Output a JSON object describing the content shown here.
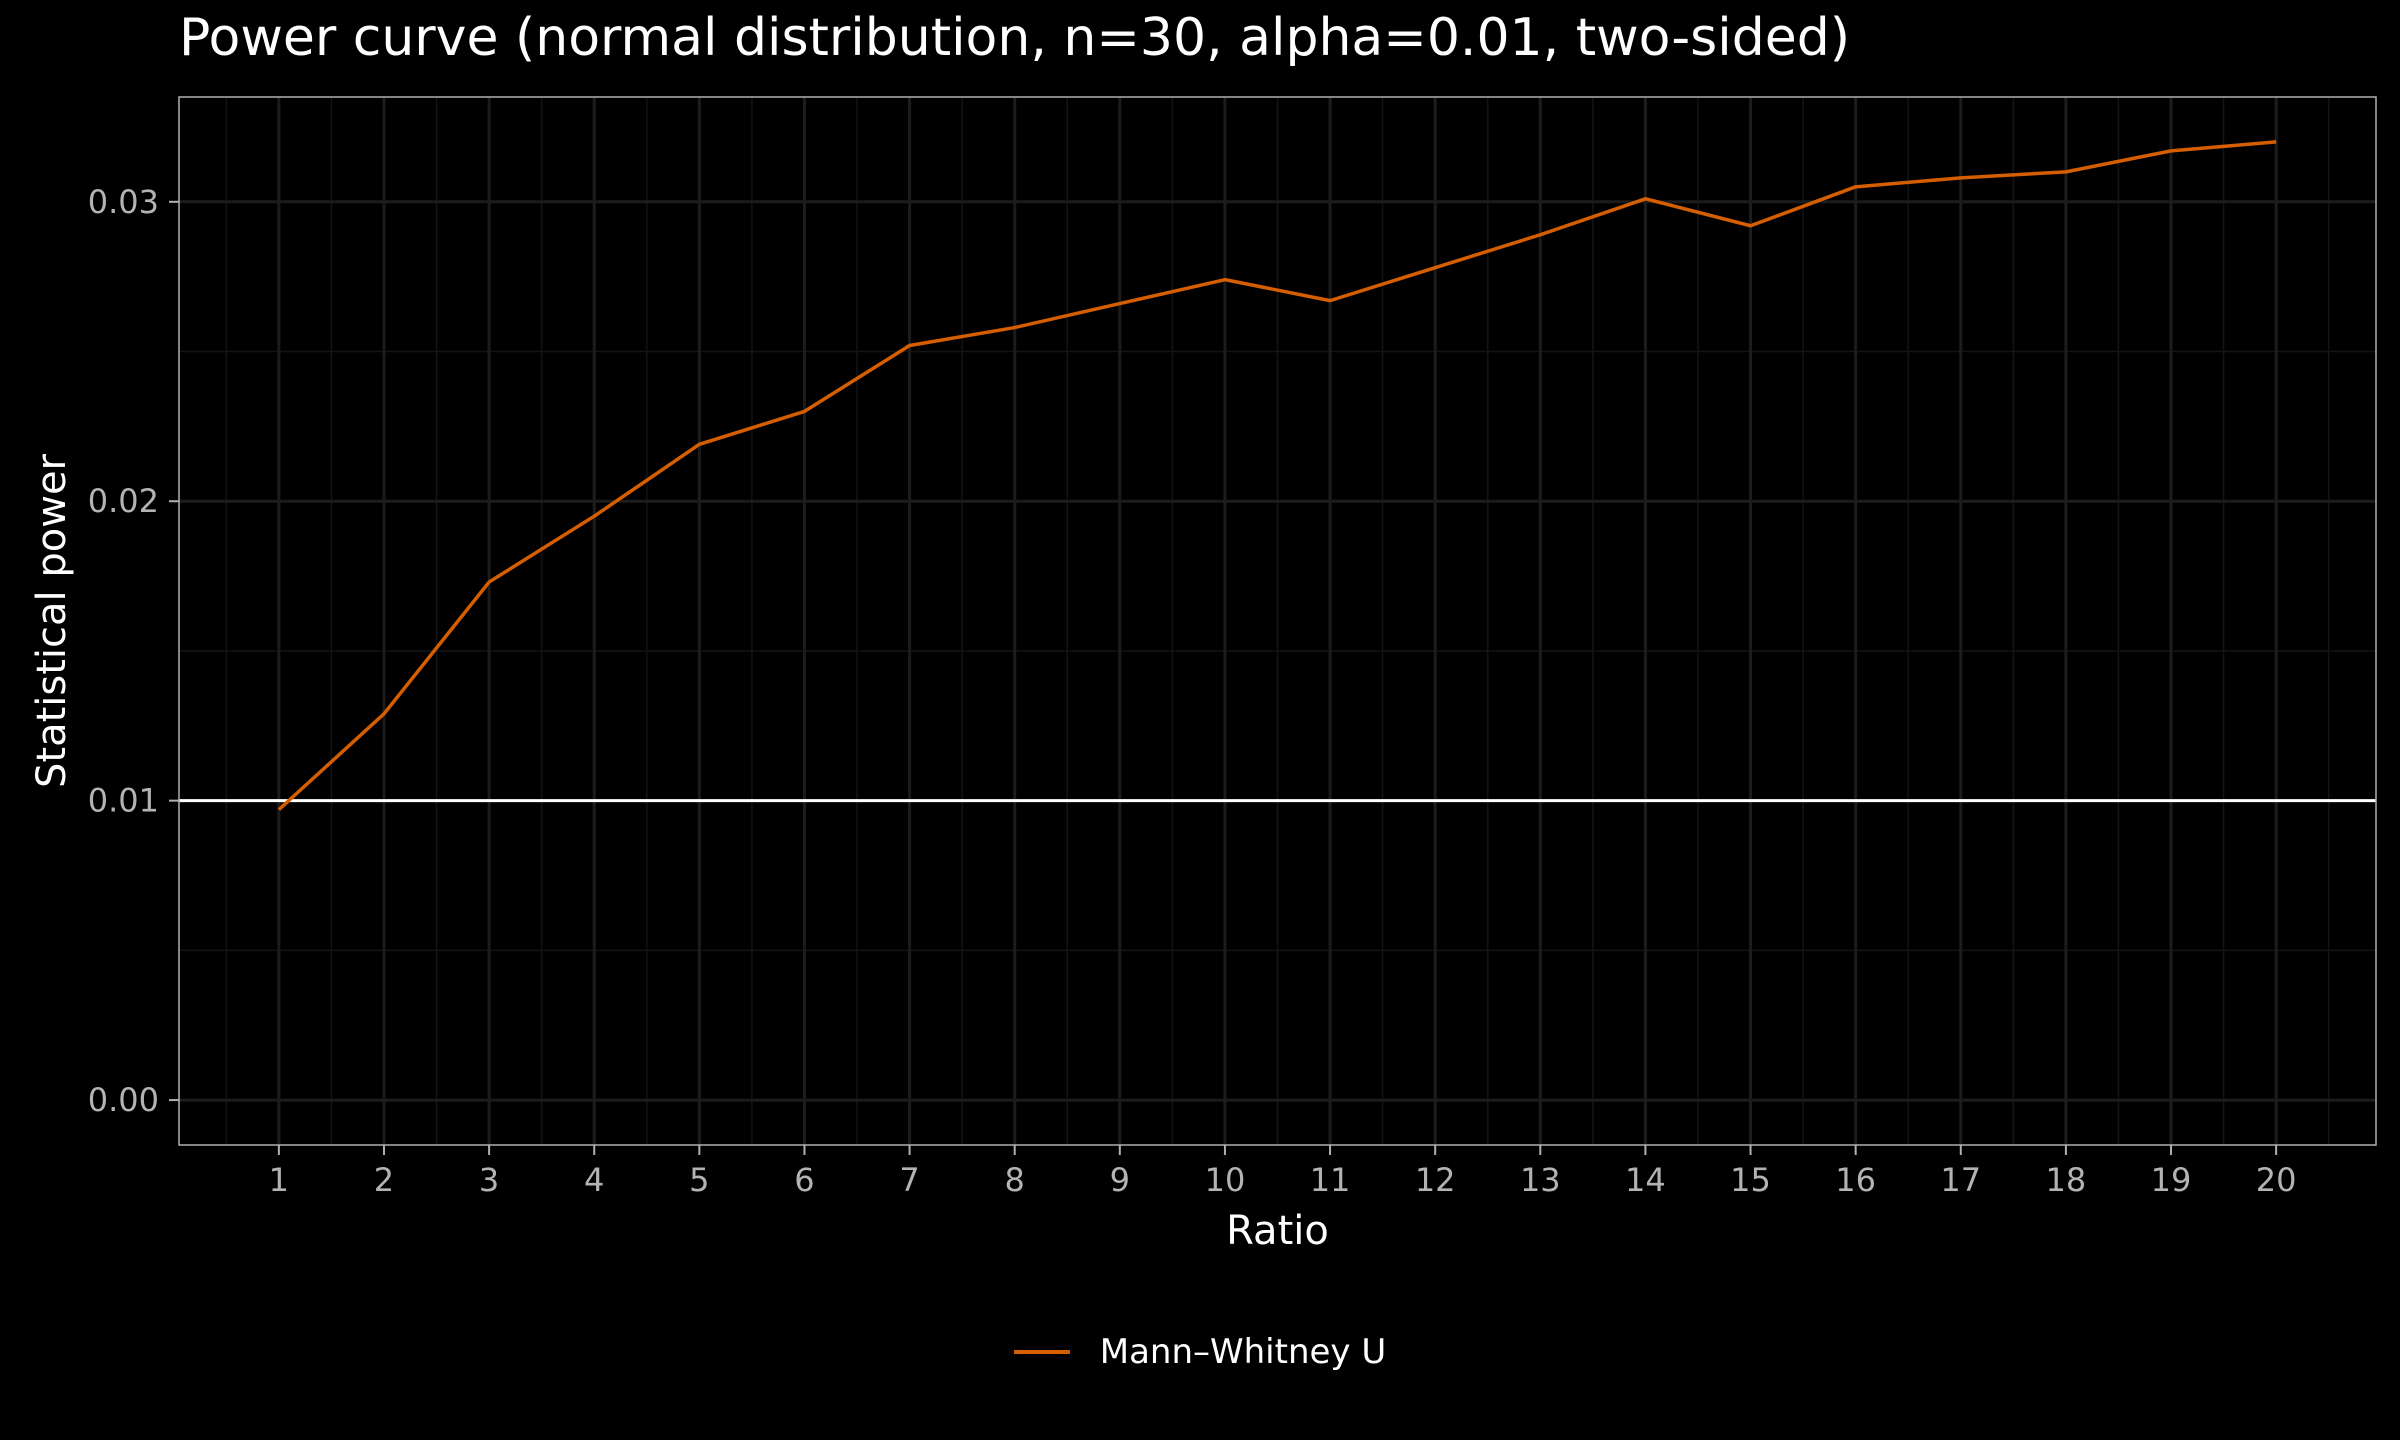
{
  "chart_data": {
    "type": "line",
    "title": "Power curve (normal distribution, n=30, alpha=0.01, two-sided)",
    "xlabel": "Ratio",
    "ylabel": "Statistical power",
    "x": [
      1,
      2,
      3,
      4,
      5,
      6,
      7,
      8,
      9,
      10,
      11,
      12,
      13,
      14,
      15,
      16,
      17,
      18,
      19,
      20
    ],
    "xticks": [
      "1",
      "2",
      "3",
      "4",
      "5",
      "6",
      "7",
      "8",
      "9",
      "10",
      "11",
      "12",
      "13",
      "14",
      "15",
      "16",
      "17",
      "18",
      "19",
      "20"
    ],
    "yticks": [
      "0.00",
      "0.01",
      "0.02",
      "0.03"
    ],
    "ytick_values": [
      0,
      0.01,
      0.02,
      0.03
    ],
    "xlim": [
      0.05,
      20.95
    ],
    "ylim": [
      -0.0015,
      0.0335
    ],
    "series": [
      {
        "name": "Mann–Whitney U",
        "color": "#d55e00",
        "values": [
          0.0097,
          0.0129,
          0.0173,
          0.0195,
          0.0219,
          0.023,
          0.0252,
          0.0258,
          0.0266,
          0.0274,
          0.0267,
          0.0278,
          0.0289,
          0.0301,
          0.0292,
          0.0305,
          0.0308,
          0.031,
          0.0317,
          0.032
        ]
      }
    ],
    "reference_line": {
      "y": 0.01,
      "color": "#ffffff"
    },
    "legend_position": "bottom",
    "grid": true,
    "background": "#000000"
  }
}
